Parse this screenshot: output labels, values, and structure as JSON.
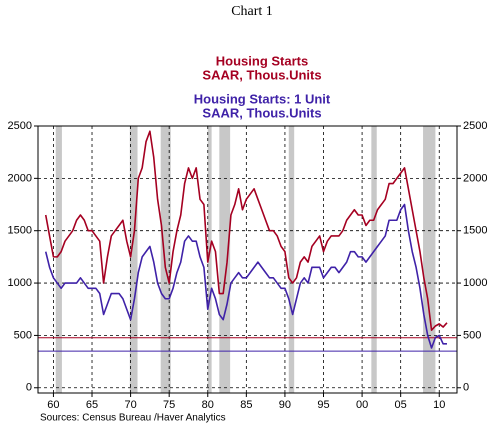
{
  "chart_data": {
    "type": "line",
    "title": "Chart 1",
    "legend_lines": [
      {
        "series": 0,
        "lines": [
          "Housing Starts",
          "SAAR, Thous.Units"
        ]
      },
      {
        "series": 1,
        "lines": [
          "Housing Starts: 1 Unit",
          "SAAR, Thous.Units"
        ]
      }
    ],
    "source": "Sources:  Census Bureau /Haver Analytics",
    "x": [
      1959,
      1959.5,
      1960,
      1960.5,
      1961,
      1961.5,
      1962,
      1962.5,
      1963,
      1963.5,
      1964,
      1964.5,
      1965,
      1965.5,
      1966,
      1966.5,
      1967,
      1967.5,
      1968,
      1968.5,
      1969,
      1969.5,
      1970,
      1970.5,
      1971,
      1971.5,
      1972,
      1972.5,
      1973,
      1973.5,
      1974,
      1974.5,
      1975,
      1975.5,
      1976,
      1976.5,
      1977,
      1977.5,
      1978,
      1978.5,
      1979,
      1979.5,
      1980,
      1980.5,
      1981,
      1981.5,
      1982,
      1982.5,
      1983,
      1983.5,
      1984,
      1984.5,
      1985,
      1985.5,
      1986,
      1986.5,
      1987,
      1987.5,
      1988,
      1988.5,
      1989,
      1989.5,
      1990,
      1990.5,
      1991,
      1991.5,
      1992,
      1992.5,
      1993,
      1993.5,
      1994,
      1994.5,
      1995,
      1995.5,
      1996,
      1996.5,
      1997,
      1997.5,
      1998,
      1998.5,
      1999,
      1999.5,
      2000,
      2000.5,
      2001,
      2001.5,
      2002,
      2002.5,
      2003,
      2003.5,
      2004,
      2004.5,
      2005,
      2005.5,
      2006,
      2006.5,
      2007,
      2007.5,
      2008,
      2008.5,
      2009,
      2009.5,
      2010,
      2010.5,
      2011
    ],
    "series": [
      {
        "name": "Housing Starts",
        "color": "#a50021",
        "values": [
          1650,
          1450,
          1250,
          1250,
          1300,
          1400,
          1450,
          1500,
          1600,
          1650,
          1600,
          1500,
          1500,
          1450,
          1400,
          1000,
          1250,
          1450,
          1500,
          1550,
          1600,
          1400,
          1250,
          1500,
          2000,
          2100,
          2350,
          2450,
          2200,
          1800,
          1550,
          1150,
          1000,
          1300,
          1500,
          1650,
          1950,
          2100,
          2000,
          2100,
          1800,
          1750,
          1200,
          1400,
          1300,
          900,
          900,
          1200,
          1650,
          1750,
          1900,
          1700,
          1800,
          1850,
          1900,
          1800,
          1700,
          1600,
          1500,
          1500,
          1450,
          1350,
          1300,
          1050,
          1000,
          1050,
          1200,
          1250,
          1200,
          1350,
          1400,
          1450,
          1300,
          1400,
          1450,
          1450,
          1450,
          1500,
          1600,
          1650,
          1700,
          1650,
          1650,
          1550,
          1600,
          1600,
          1700,
          1750,
          1800,
          1950,
          1950,
          2000,
          2050,
          2100,
          1900,
          1700,
          1500,
          1300,
          1050,
          850,
          550,
          590,
          610,
          580,
          620
        ]
      },
      {
        "name": "Housing Starts: 1 Unit",
        "color": "#3f22a8",
        "values": [
          1300,
          1150,
          1050,
          1000,
          950,
          1000,
          1000,
          1000,
          1000,
          1050,
          1000,
          950,
          950,
          950,
          900,
          700,
          800,
          900,
          900,
          900,
          850,
          750,
          650,
          850,
          1100,
          1250,
          1300,
          1350,
          1200,
          1000,
          900,
          850,
          850,
          950,
          1100,
          1200,
          1400,
          1450,
          1400,
          1400,
          1250,
          1150,
          750,
          950,
          850,
          700,
          650,
          800,
          1000,
          1050,
          1100,
          1050,
          1050,
          1100,
          1150,
          1200,
          1150,
          1100,
          1050,
          1050,
          1000,
          950,
          950,
          850,
          700,
          850,
          1000,
          1050,
          1000,
          1150,
          1150,
          1150,
          1050,
          1100,
          1150,
          1150,
          1100,
          1150,
          1200,
          1300,
          1300,
          1250,
          1250,
          1200,
          1250,
          1300,
          1350,
          1400,
          1450,
          1600,
          1600,
          1600,
          1700,
          1750,
          1500,
          1300,
          1150,
          950,
          700,
          500,
          380,
          480,
          500,
          420,
          420
        ]
      }
    ],
    "reference_lines": [
      {
        "value": 478,
        "series": 0
      },
      {
        "value": 350,
        "series": 1
      }
    ],
    "recessions": [
      [
        1960.3,
        1961.1
      ],
      [
        1969.9,
        1970.9
      ],
      [
        1973.9,
        1975.2
      ],
      [
        1980.0,
        1980.5
      ],
      [
        1981.5,
        1982.9
      ],
      [
        1990.5,
        1991.2
      ],
      [
        2001.2,
        2001.9
      ],
      [
        2007.9,
        2009.5
      ]
    ],
    "recession_color": "#c8c8c8",
    "xlim": [
      1958,
      2012.3
    ],
    "xticks": [
      {
        "value": 1960,
        "label": "60"
      },
      {
        "value": 1965,
        "label": "65"
      },
      {
        "value": 1970,
        "label": "70"
      },
      {
        "value": 1975,
        "label": "75"
      },
      {
        "value": 1980,
        "label": "80"
      },
      {
        "value": 1985,
        "label": "85"
      },
      {
        "value": 1990,
        "label": "90"
      },
      {
        "value": 1995,
        "label": "95"
      },
      {
        "value": 2000,
        "label": "00"
      },
      {
        "value": 2005,
        "label": "05"
      },
      {
        "value": 2010,
        "label": "10"
      }
    ],
    "ylim": [
      -50,
      2500
    ],
    "yticks": [
      0,
      500,
      1000,
      1500,
      2000,
      2500
    ],
    "grid": true
  }
}
